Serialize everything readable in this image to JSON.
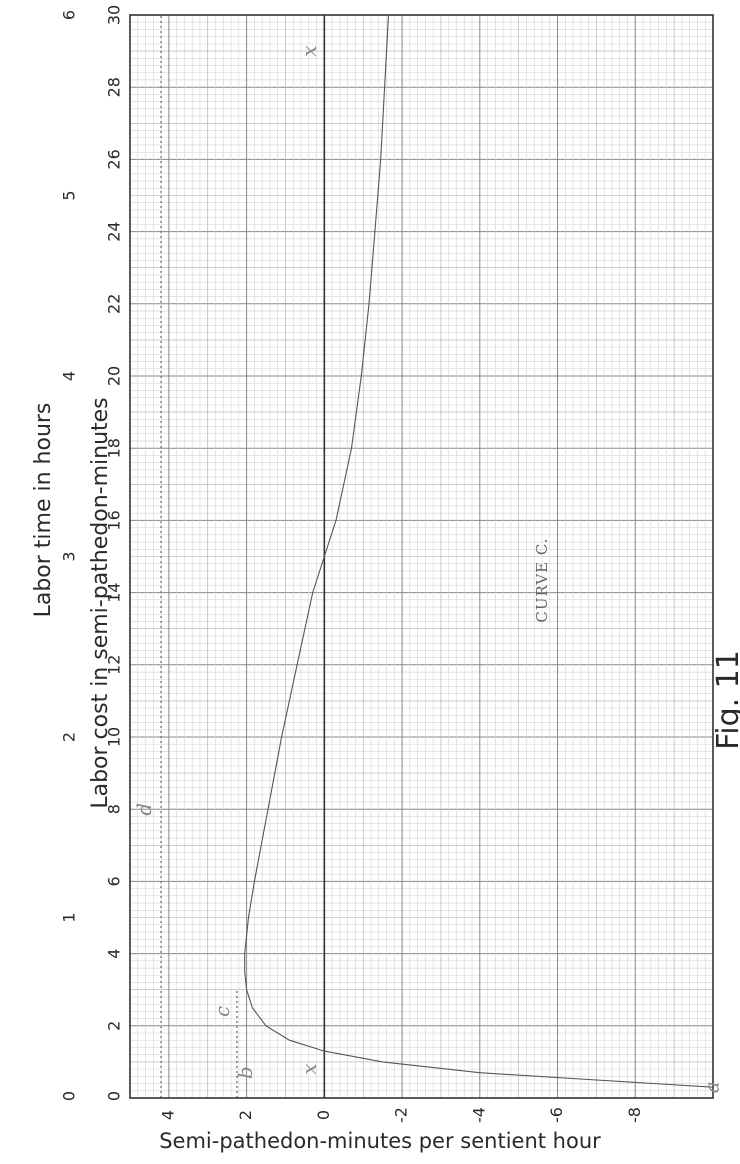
{
  "chart_data": {
    "type": "line",
    "title": "CURVE C.",
    "figure_label": "Fig. 11",
    "ylabel": "Semi-pathedon-minutes per sentient hour",
    "xlabel_cost": "Labor cost in semi-pathedon-minutes",
    "xlabel_time": "Labor time in hours",
    "xlim": [
      0,
      30
    ],
    "ylim": [
      -10,
      5
    ],
    "cost_ticks": [
      "2",
      "4",
      "6",
      "8",
      "10",
      "12",
      "14",
      "16",
      "18",
      "20",
      "22",
      "24",
      "26",
      "28",
      "30"
    ],
    "time_ticks": [
      "1",
      "2",
      "3",
      "4",
      "5",
      "6"
    ],
    "value_ticks": [
      {
        "v": 4,
        "label": "4"
      },
      {
        "v": 2,
        "label": "2"
      },
      {
        "v": 0,
        "label": "0"
      },
      {
        "v": -2,
        "label": "-2"
      },
      {
        "v": -4,
        "label": "-4"
      },
      {
        "v": -6,
        "label": "-6"
      },
      {
        "v": -8,
        "label": "-8"
      }
    ],
    "corner_ticks": {
      "origin_left": "0",
      "origin_right": "0",
      "top_left": "30",
      "top_right": "6"
    },
    "grid": true,
    "series": [
      {
        "x": [
          0.3,
          0.5,
          0.7,
          1.0,
          1.3,
          1.6,
          2.0,
          2.5,
          3.0,
          3.5,
          4.0,
          5.0,
          6.0,
          8.0,
          10.0,
          12.0,
          14.0,
          15.0,
          16.0,
          18.0,
          20.0,
          22.0,
          24.0,
          26.0,
          28.0,
          30.0
        ],
        "y": [
          -10.0,
          -7.0,
          -4.0,
          -1.5,
          0.0,
          0.9,
          1.5,
          1.85,
          2.0,
          2.05,
          2.05,
          1.95,
          1.8,
          1.45,
          1.1,
          0.7,
          0.3,
          0.0,
          -0.3,
          -0.7,
          -0.95,
          -1.15,
          -1.3,
          -1.45,
          -1.55,
          -1.65
        ]
      }
    ],
    "guide_lines": [
      {
        "kind": "horizontal",
        "y": 4.2,
        "x_from": 0,
        "x_to": 30
      },
      {
        "kind": "horizontal",
        "y": 2.25,
        "x_from": 0,
        "x_to": 3
      }
    ],
    "point_labels": [
      {
        "text": "a",
        "x": 0.3,
        "y": -10.0
      },
      {
        "text": "b",
        "x": 0.7,
        "y": 2.0
      },
      {
        "text": "c",
        "x": 2.4,
        "y": 2.6
      },
      {
        "text": "d",
        "x": 8.0,
        "y": 4.6
      },
      {
        "text": "x",
        "x": 0.8,
        "y": 0.35
      },
      {
        "text": "x",
        "x": 29.0,
        "y": 0.35
      }
    ]
  }
}
